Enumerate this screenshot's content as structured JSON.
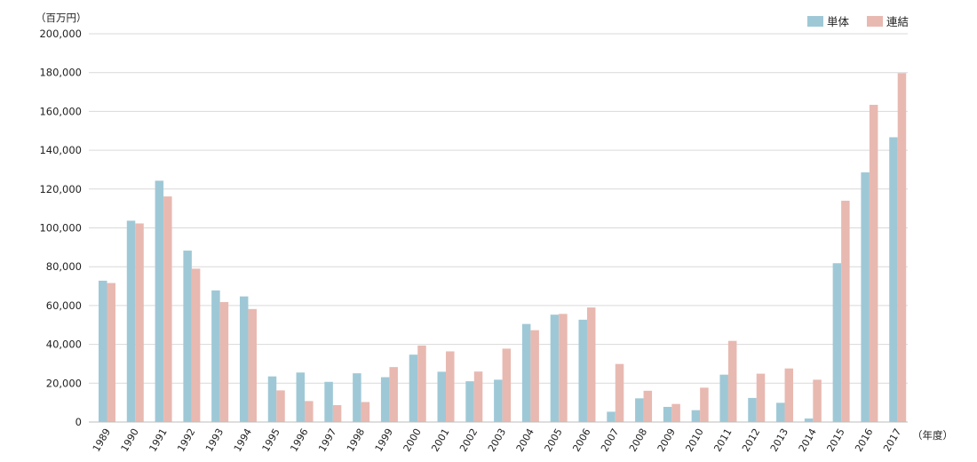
{
  "chart_data": {
    "type": "bar",
    "ylabel": "（百万円）",
    "xlabel": "（年度）",
    "ylim": [
      0,
      200000
    ],
    "yticks": [
      0,
      20000,
      40000,
      60000,
      80000,
      100000,
      120000,
      140000,
      160000,
      180000,
      200000
    ],
    "ytick_labels": [
      "0",
      "20,000",
      "40,000",
      "60,000",
      "80,000",
      "100,000",
      "120,000",
      "140,000",
      "160,000",
      "180,000",
      "200,000"
    ],
    "grid": true,
    "legend_position": "top-right",
    "categories": [
      "1989",
      "1990",
      "1991",
      "1992",
      "1993",
      "1994",
      "1995",
      "1996",
      "1997",
      "1998",
      "1999",
      "2000",
      "2001",
      "2002",
      "2003",
      "2004",
      "2005",
      "2006",
      "2007",
      "2008",
      "2009",
      "2010",
      "2011",
      "2012",
      "2013",
      "2014",
      "2015",
      "2016",
      "2017"
    ],
    "series": [
      {
        "name": "単体",
        "color": "#9fc8d6",
        "values": [
          72800,
          103700,
          124300,
          88300,
          67800,
          64700,
          23500,
          25500,
          20700,
          25100,
          23100,
          34700,
          25900,
          21000,
          21800,
          50500,
          55300,
          52700,
          5300,
          12200,
          7800,
          6100,
          24400,
          12400,
          9900,
          1800,
          81800,
          128600,
          146700
        ]
      },
      {
        "name": "連結",
        "color": "#e8b9b1",
        "values": [
          71600,
          102300,
          116200,
          79000,
          61800,
          58200,
          16300,
          10800,
          8700,
          10300,
          28300,
          39400,
          36400,
          26000,
          37800,
          47300,
          55700,
          59000,
          29900,
          16100,
          9300,
          17700,
          41800,
          24900,
          27600,
          21800,
          114000,
          163400,
          179700
        ]
      }
    ]
  }
}
